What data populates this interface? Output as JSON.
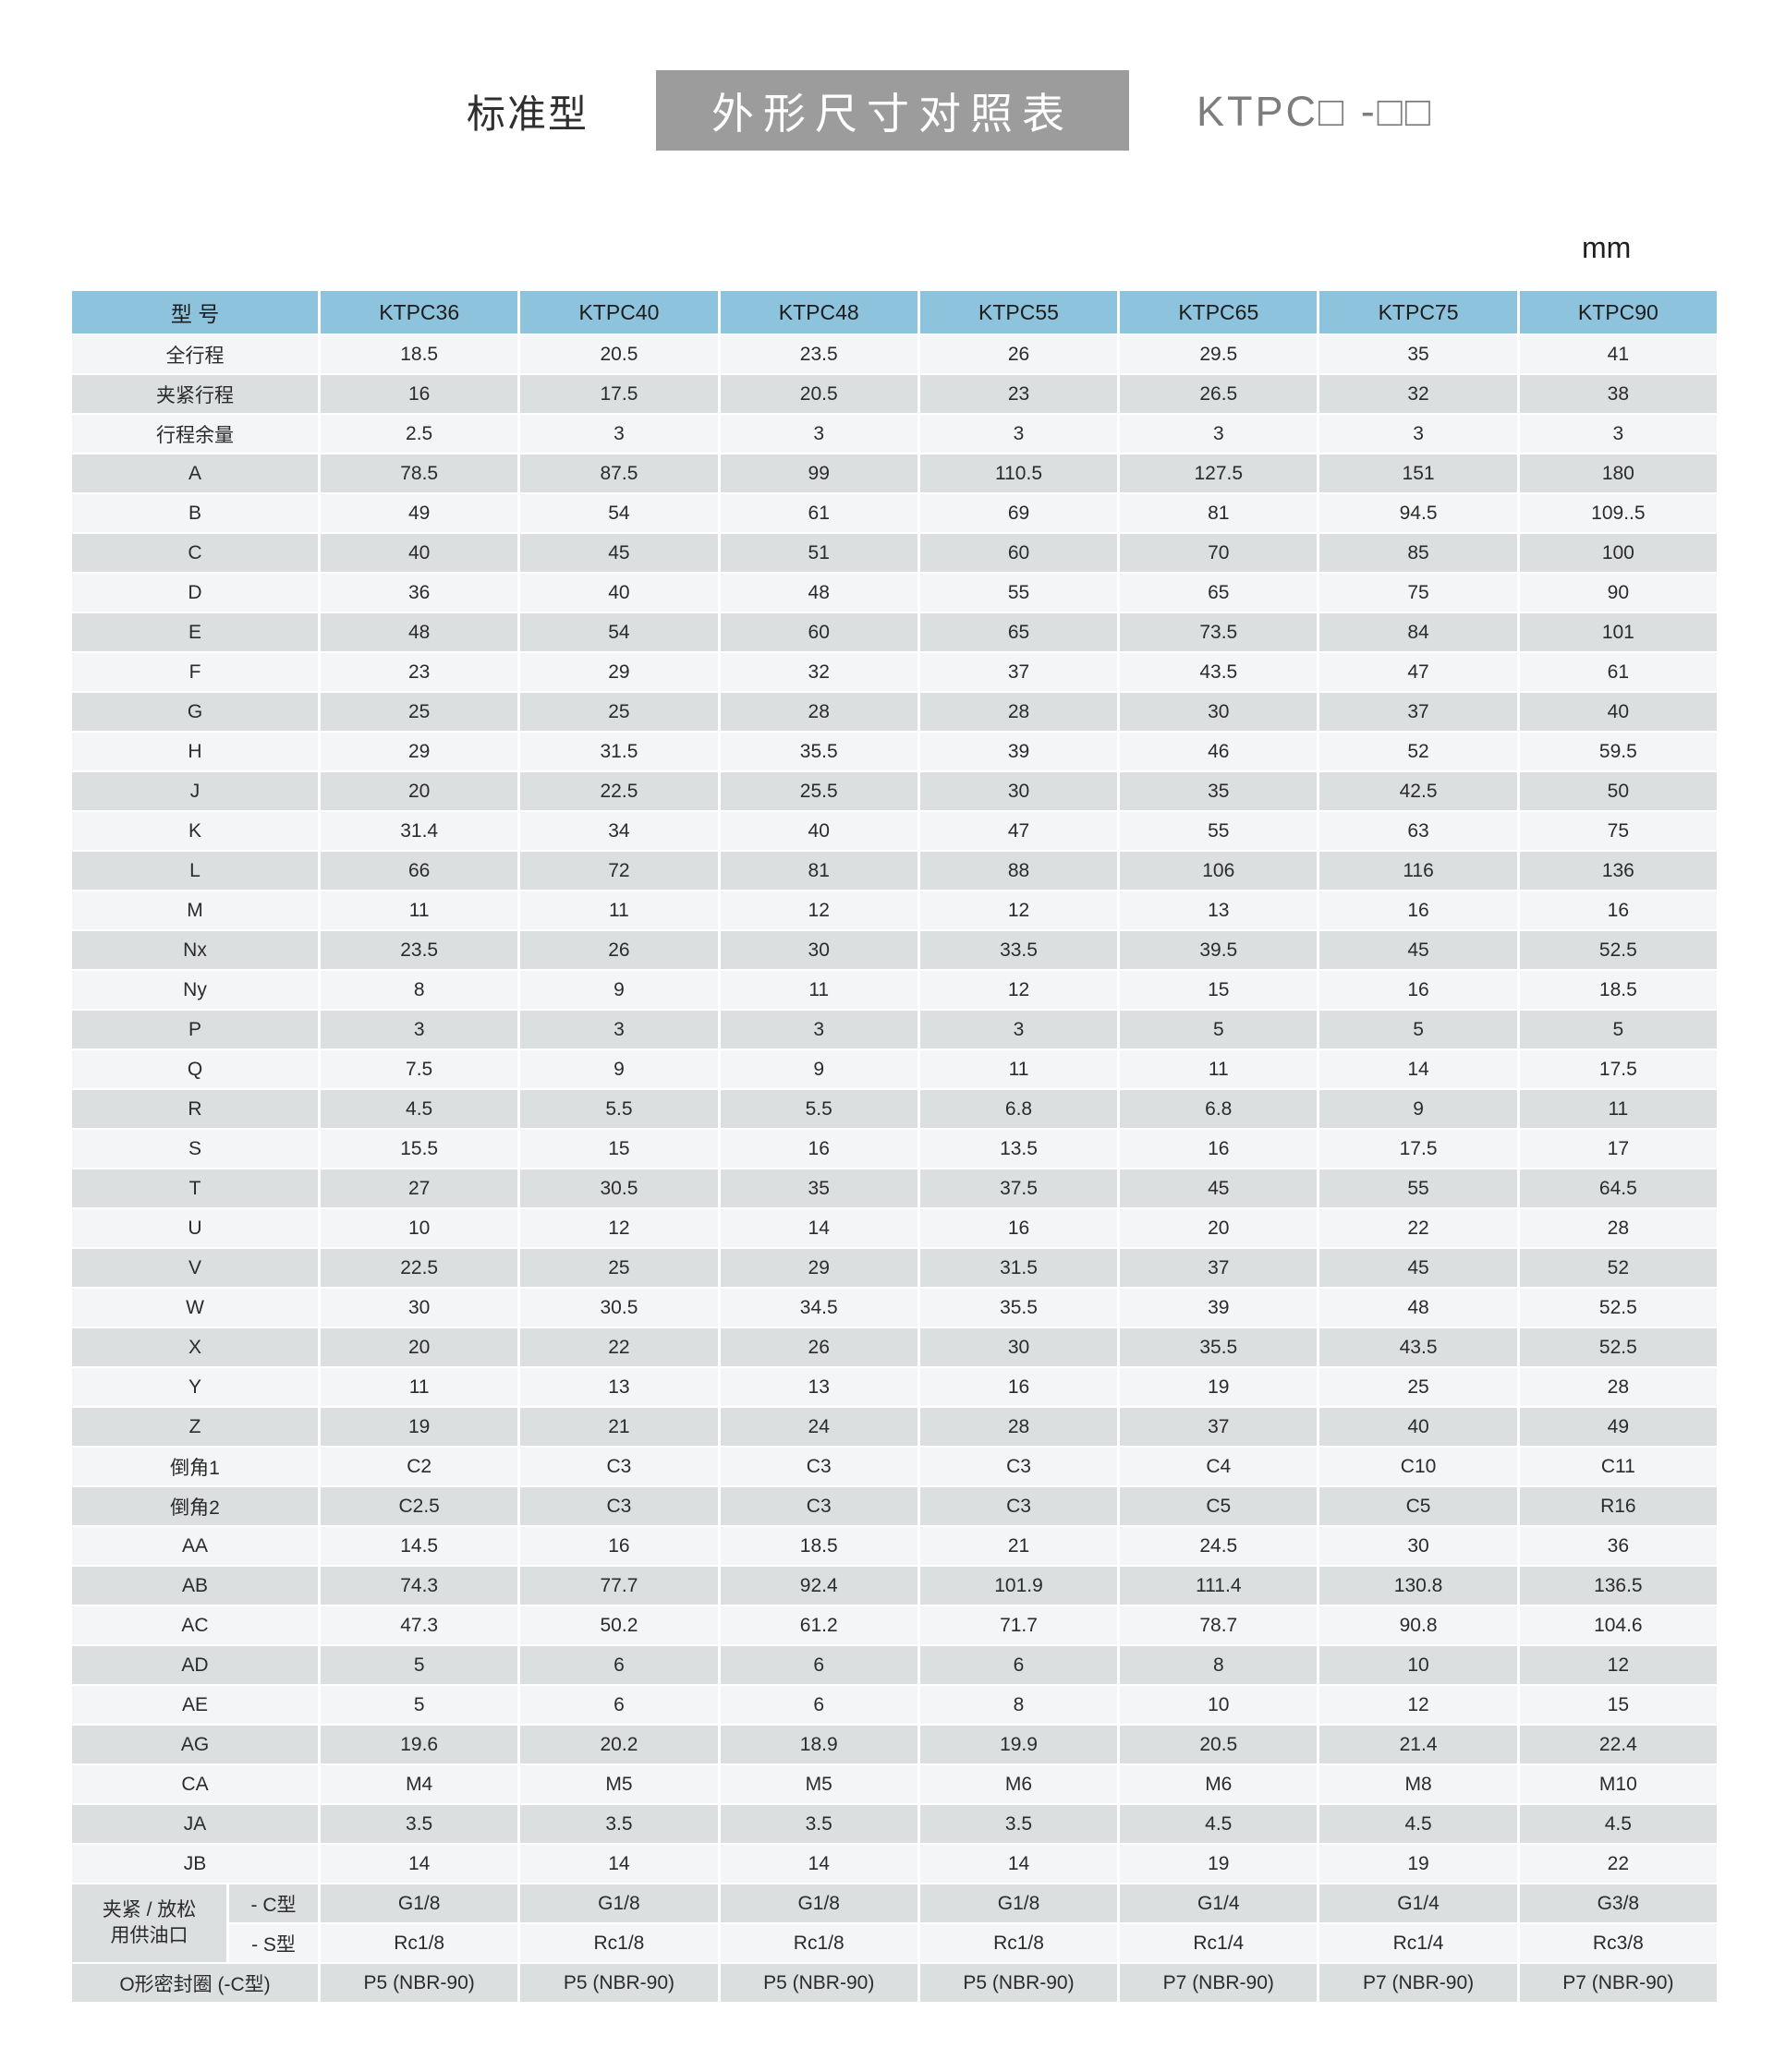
{
  "header": {
    "series_type": "标准型",
    "banner_title": "外形尺寸对照表",
    "model_code": "KTPC□ -□□",
    "unit": "mm"
  },
  "colors": {
    "header_bg": "#8ec3de",
    "row_light": "#f3f5f6",
    "row_dark": "#dcdfe0",
    "banner_bg": "#9c9c9c",
    "banner_text": "#ffffff",
    "model_text": "#7d7d7d",
    "body_text": "#2b2b2b"
  },
  "table": {
    "columns": [
      "型 号",
      "KTPC36",
      "KTPC40",
      "KTPC48",
      "KTPC55",
      "KTPC65",
      "KTPC75",
      "KTPC90"
    ],
    "rows": [
      {
        "label": "全行程",
        "values": [
          "18.5",
          "20.5",
          "23.5",
          "26",
          "29.5",
          "35",
          "41"
        ]
      },
      {
        "label": "夹紧行程",
        "values": [
          "16",
          "17.5",
          "20.5",
          "23",
          "26.5",
          "32",
          "38"
        ]
      },
      {
        "label": "行程余量",
        "values": [
          "2.5",
          "3",
          "3",
          "3",
          "3",
          "3",
          "3"
        ]
      },
      {
        "label": "A",
        "values": [
          "78.5",
          "87.5",
          "99",
          "110.5",
          "127.5",
          "151",
          "180"
        ]
      },
      {
        "label": "B",
        "values": [
          "49",
          "54",
          "61",
          "69",
          "81",
          "94.5",
          "109..5"
        ]
      },
      {
        "label": "C",
        "values": [
          "40",
          "45",
          "51",
          "60",
          "70",
          "85",
          "100"
        ]
      },
      {
        "label": "D",
        "values": [
          "36",
          "40",
          "48",
          "55",
          "65",
          "75",
          "90"
        ]
      },
      {
        "label": "E",
        "values": [
          "48",
          "54",
          "60",
          "65",
          "73.5",
          "84",
          "101"
        ]
      },
      {
        "label": "F",
        "values": [
          "23",
          "29",
          "32",
          "37",
          "43.5",
          "47",
          "61"
        ]
      },
      {
        "label": "G",
        "values": [
          "25",
          "25",
          "28",
          "28",
          "30",
          "37",
          "40"
        ]
      },
      {
        "label": "H",
        "values": [
          "29",
          "31.5",
          "35.5",
          "39",
          "46",
          "52",
          "59.5"
        ]
      },
      {
        "label": "J",
        "values": [
          "20",
          "22.5",
          "25.5",
          "30",
          "35",
          "42.5",
          "50"
        ]
      },
      {
        "label": "K",
        "values": [
          "31.4",
          "34",
          "40",
          "47",
          "55",
          "63",
          "75"
        ]
      },
      {
        "label": "L",
        "values": [
          "66",
          "72",
          "81",
          "88",
          "106",
          "116",
          "136"
        ]
      },
      {
        "label": "M",
        "values": [
          "11",
          "11",
          "12",
          "12",
          "13",
          "16",
          "16"
        ]
      },
      {
        "label": "Nx",
        "values": [
          "23.5",
          "26",
          "30",
          "33.5",
          "39.5",
          "45",
          "52.5"
        ]
      },
      {
        "label": "Ny",
        "values": [
          "8",
          "9",
          "11",
          "12",
          "15",
          "16",
          "18.5"
        ]
      },
      {
        "label": "P",
        "values": [
          "3",
          "3",
          "3",
          "3",
          "5",
          "5",
          "5"
        ]
      },
      {
        "label": "Q",
        "values": [
          "7.5",
          "9",
          "9",
          "11",
          "11",
          "14",
          "17.5"
        ]
      },
      {
        "label": "R",
        "values": [
          "4.5",
          "5.5",
          "5.5",
          "6.8",
          "6.8",
          "9",
          "11"
        ]
      },
      {
        "label": "S",
        "values": [
          "15.5",
          "15",
          "16",
          "13.5",
          "16",
          "17.5",
          "17"
        ]
      },
      {
        "label": "T",
        "values": [
          "27",
          "30.5",
          "35",
          "37.5",
          "45",
          "55",
          "64.5"
        ]
      },
      {
        "label": "U",
        "values": [
          "10",
          "12",
          "14",
          "16",
          "20",
          "22",
          "28"
        ]
      },
      {
        "label": "V",
        "values": [
          "22.5",
          "25",
          "29",
          "31.5",
          "37",
          "45",
          "52"
        ]
      },
      {
        "label": "W",
        "values": [
          "30",
          "30.5",
          "34.5",
          "35.5",
          "39",
          "48",
          "52.5"
        ]
      },
      {
        "label": "X",
        "values": [
          "20",
          "22",
          "26",
          "30",
          "35.5",
          "43.5",
          "52.5"
        ]
      },
      {
        "label": "Y",
        "values": [
          "11",
          "13",
          "13",
          "16",
          "19",
          "25",
          "28"
        ]
      },
      {
        "label": "Z",
        "values": [
          "19",
          "21",
          "24",
          "28",
          "37",
          "40",
          "49"
        ]
      },
      {
        "label": "倒角1",
        "values": [
          "C2",
          "C3",
          "C3",
          "C3",
          "C4",
          "C10",
          "C11"
        ]
      },
      {
        "label": "倒角2",
        "values": [
          "C2.5",
          "C3",
          "C3",
          "C3",
          "C5",
          "C5",
          "R16"
        ]
      },
      {
        "label": "AA",
        "values": [
          "14.5",
          "16",
          "18.5",
          "21",
          "24.5",
          "30",
          "36"
        ]
      },
      {
        "label": "AB",
        "values": [
          "74.3",
          "77.7",
          "92.4",
          "101.9",
          "111.4",
          "130.8",
          "136.5"
        ]
      },
      {
        "label": "AC",
        "values": [
          "47.3",
          "50.2",
          "61.2",
          "71.7",
          "78.7",
          "90.8",
          "104.6"
        ]
      },
      {
        "label": "AD",
        "values": [
          "5",
          "6",
          "6",
          "6",
          "8",
          "10",
          "12"
        ]
      },
      {
        "label": "AE",
        "values": [
          "5",
          "6",
          "6",
          "8",
          "10",
          "12",
          "15"
        ]
      },
      {
        "label": "AG",
        "values": [
          "19.6",
          "20.2",
          "18.9",
          "19.9",
          "20.5",
          "21.4",
          "22.4"
        ]
      },
      {
        "label": "CA",
        "values": [
          "M4",
          "M5",
          "M5",
          "M6",
          "M6",
          "M8",
          "M10"
        ]
      },
      {
        "label": "JA",
        "values": [
          "3.5",
          "3.5",
          "3.5",
          "3.5",
          "4.5",
          "4.5",
          "4.5"
        ]
      },
      {
        "label": "JB",
        "values": [
          "14",
          "14",
          "14",
          "14",
          "19",
          "19",
          "22"
        ]
      }
    ],
    "oil_port_group": {
      "group_label": "夹紧 / 放松\n用供油口",
      "rows": [
        {
          "label": "- C型",
          "values": [
            "G1/8",
            "G1/8",
            "G1/8",
            "G1/8",
            "G1/4",
            "G1/4",
            "G3/8"
          ]
        },
        {
          "label": "- S型",
          "values": [
            "Rc1/8",
            "Rc1/8",
            "Rc1/8",
            "Rc1/8",
            "Rc1/4",
            "Rc1/4",
            "Rc3/8"
          ]
        }
      ]
    },
    "oring_row": {
      "label": "O形密封圈 (-C型)",
      "values": [
        "P5 (NBR-90)",
        "P5 (NBR-90)",
        "P5 (NBR-90)",
        "P5 (NBR-90)",
        "P7 (NBR-90)",
        "P7 (NBR-90)",
        "P7 (NBR-90)"
      ]
    }
  }
}
